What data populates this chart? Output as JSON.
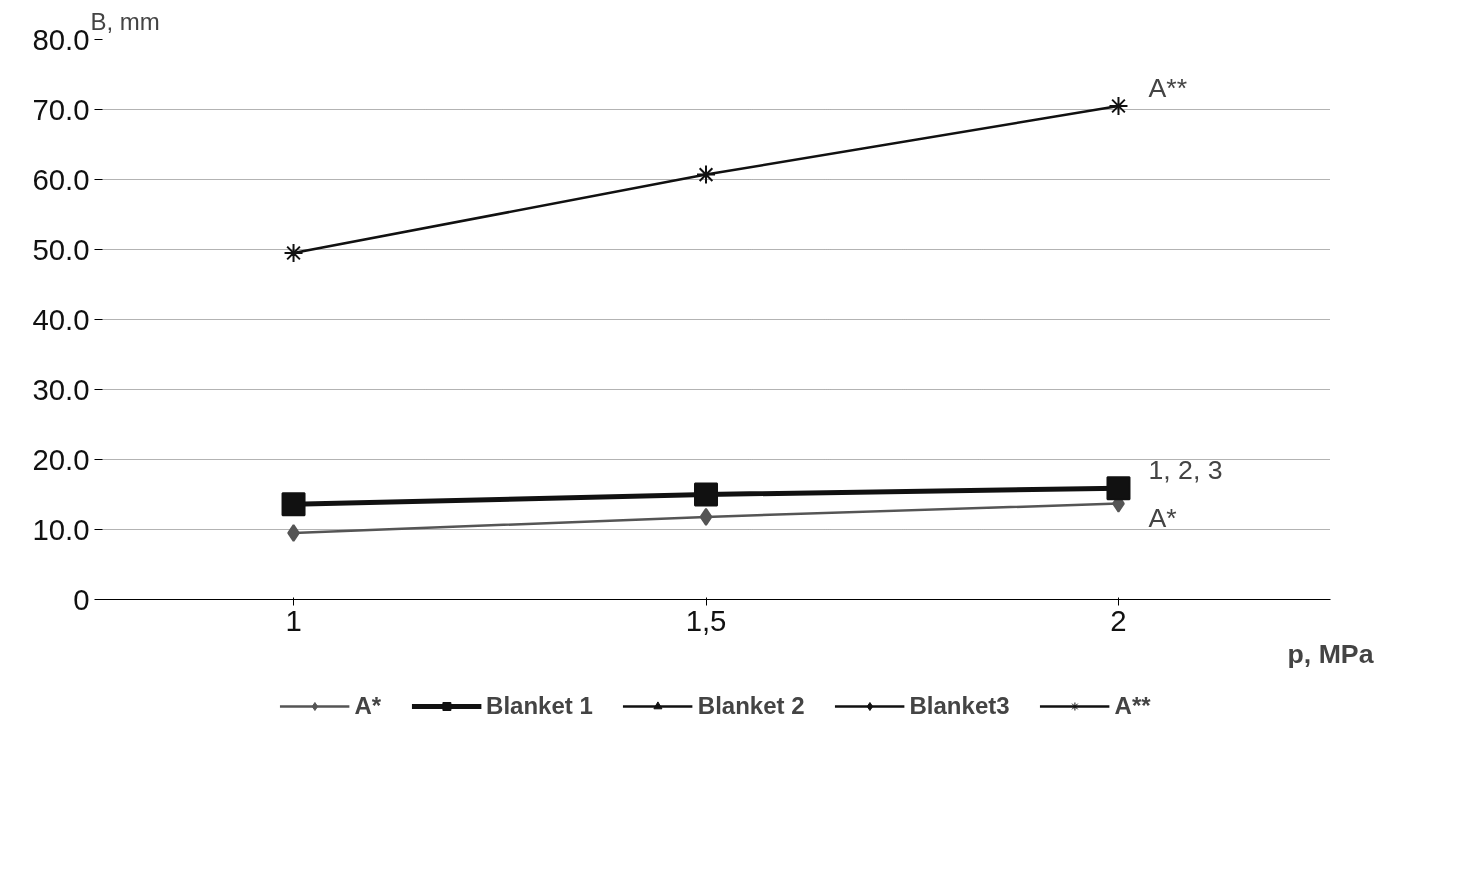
{
  "chart_data": {
    "type": "line",
    "xlabel": "p, MPa",
    "ylabel": "B, mm",
    "x": [
      1,
      1.5,
      2
    ],
    "xlim": [
      0.766,
      2.257
    ],
    "xticks": [
      1,
      {
        "value": 1.5,
        "label": "1,5"
      },
      2
    ],
    "ylim": [
      0,
      80
    ],
    "yticks": [
      {
        "value": 0,
        "label": "0"
      },
      {
        "value": 10,
        "label": "10.0"
      },
      {
        "value": 20,
        "label": "20.0"
      },
      {
        "value": 30,
        "label": "30.0"
      },
      {
        "value": 40,
        "label": "40.0"
      },
      {
        "value": 50,
        "label": "50.0"
      },
      {
        "value": 60,
        "label": "60.0"
      },
      {
        "value": 70,
        "label": "70.0"
      },
      {
        "value": 80,
        "label": "80.0"
      }
    ],
    "grid": "y",
    "legend": "bottom",
    "series": [
      {
        "name": "A*",
        "color": "#555555",
        "marker": "diamond",
        "values": [
          9.5,
          11.8,
          13.7
        ]
      },
      {
        "name": "Blanket 1",
        "color": "#111111",
        "marker": "square",
        "values": [
          13.6,
          15.0,
          15.9
        ]
      },
      {
        "name": "Blanket 2",
        "color": "#111111",
        "marker": "triangle",
        "values": [
          null,
          null,
          null
        ]
      },
      {
        "name": "Blanket3",
        "color": "#111111",
        "marker": "diamond",
        "values": [
          null,
          null,
          null
        ]
      },
      {
        "name": "A**",
        "color": "#111111",
        "marker": "cross",
        "values": [
          49.5,
          60.7,
          70.5
        ]
      }
    ],
    "annotations": [
      "A**",
      "1, 2, 3",
      "A*"
    ]
  }
}
